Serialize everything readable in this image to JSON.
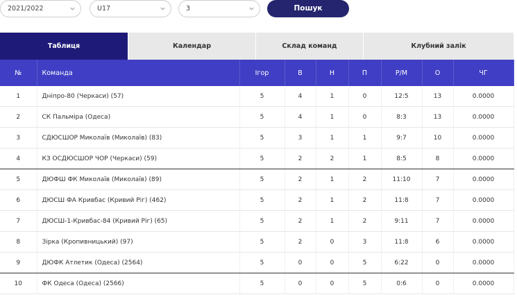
{
  "filters": {
    "season": "2021/2022",
    "age_group": "U17",
    "league": "3",
    "search_label": "Пошук"
  },
  "tabs": [
    {
      "label": "Таблиця",
      "active": true
    },
    {
      "label": "Календар",
      "active": false
    },
    {
      "label": "Склад команд",
      "active": false
    },
    {
      "label": "Клубний залік",
      "active": false
    }
  ],
  "table": {
    "headers": [
      "№",
      "Команда",
      "Ігор",
      "В",
      "Н",
      "П",
      "Р/М",
      "О",
      "ЧГ"
    ],
    "rows": [
      [
        "1",
        "Дніпро-80 (Черкаси) (57)",
        "5",
        "4",
        "1",
        "0",
        "12:5",
        "13",
        "0.0000"
      ],
      [
        "2",
        "СК Пальміра (Одеса)",
        "5",
        "4",
        "1",
        "0",
        "8:3",
        "13",
        "0.0000"
      ],
      [
        "3",
        "СДЮСШОР Миколаїв (Миколаїв) (83)",
        "5",
        "3",
        "1",
        "1",
        "9:7",
        "10",
        "0.0000"
      ],
      [
        "4",
        "КЗ ОСДЮСШОР ЧОР (Черкаси) (59)",
        "5",
        "2",
        "2",
        "1",
        "8:5",
        "8",
        "0.0000"
      ],
      [
        "5",
        "ДЮФШ ФК Миколаїв (Миколаїв) (89)",
        "5",
        "2",
        "1",
        "2",
        "11:10",
        "7",
        "0.0000"
      ],
      [
        "6",
        "ДЮСШ ФА Кривбас (Кривий Ріг) (462)",
        "5",
        "2",
        "1",
        "2",
        "11:8",
        "7",
        "0.0000"
      ],
      [
        "7",
        "ДЮСШ-1-Кривбас-84 (Кривий Ріг) (65)",
        "5",
        "2",
        "1",
        "2",
        "9:11",
        "7",
        "0.0000"
      ],
      [
        "8",
        "Зірка (Кропивницький) (97)",
        "5",
        "2",
        "0",
        "3",
        "11:8",
        "6",
        "0.0000"
      ],
      [
        "9",
        "ДЮФК Атлетик (Одеса) (2564)",
        "5",
        "0",
        "0",
        "5",
        "6:22",
        "0",
        "0.0000"
      ],
      [
        "10",
        "ФК Одеса (Одеса) (2566)",
        "5",
        "0",
        "0",
        "5",
        "0:6",
        "0",
        "0.0000"
      ]
    ]
  },
  "colors": {
    "tab_active_bg": "#1e1b78",
    "header_bg": "#3f3ec4",
    "search_bg": "#24256e"
  }
}
